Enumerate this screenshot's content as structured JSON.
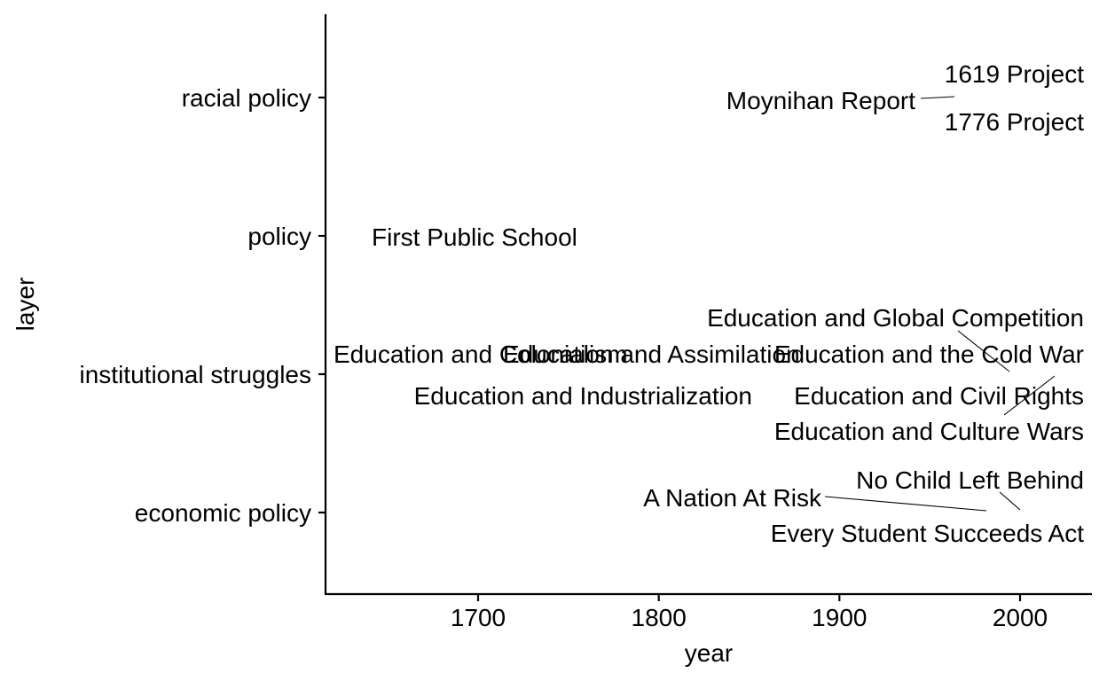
{
  "chart_data": {
    "type": "scatter",
    "xlabel": "year",
    "ylabel": "layer",
    "xlim": [
      1616,
      2040
    ],
    "x_ticks": [
      1700,
      1800,
      1900,
      2000
    ],
    "categories": [
      "economic policy",
      "institutional struggles",
      "policy",
      "racial policy"
    ],
    "grid": false,
    "legend": "none",
    "points": [
      {
        "label": "1619 Project",
        "x": 2019,
        "y": "racial policy"
      },
      {
        "label": "Moynihan Report",
        "x": 1965,
        "y": "racial policy"
      },
      {
        "label": "1776 Project",
        "x": 2020,
        "y": "racial policy"
      },
      {
        "label": "First Public School",
        "x": 1635,
        "y": "policy"
      },
      {
        "label": "Education and Global Competition",
        "x": 1980,
        "y": "institutional struggles"
      },
      {
        "label": "Education and Colonialism",
        "x": 1650,
        "y": "institutional struggles"
      },
      {
        "label": "Education and Assimilation",
        "x": 1870,
        "y": "institutional struggles"
      },
      {
        "label": "Education and the Cold War",
        "x": 1950,
        "y": "institutional struggles"
      },
      {
        "label": "Education and Industrialization",
        "x": 1850,
        "y": "institutional struggles"
      },
      {
        "label": "Education and Civil Rights",
        "x": 1960,
        "y": "institutional struggles"
      },
      {
        "label": "Education and Culture Wars",
        "x": 1990,
        "y": "institutional struggles"
      },
      {
        "label": "No Child Left Behind",
        "x": 2001,
        "y": "economic policy"
      },
      {
        "label": "A Nation At Risk",
        "x": 1983,
        "y": "economic policy"
      },
      {
        "label": "Every Student Succeeds Act",
        "x": 2015,
        "y": "economic policy"
      }
    ]
  }
}
